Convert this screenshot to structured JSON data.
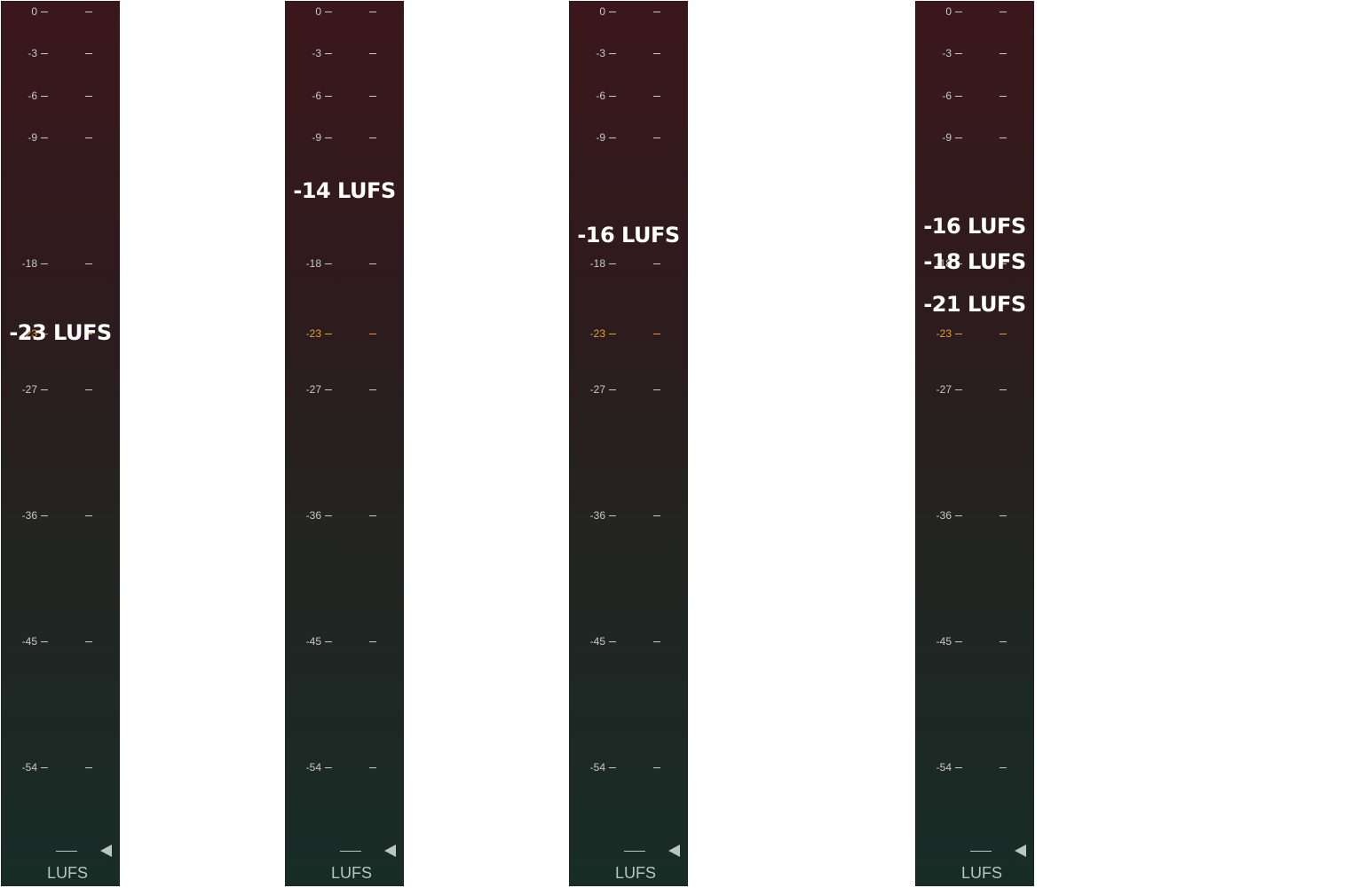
{
  "scale": {
    "ticks": [
      "0",
      "-3",
      "-6",
      "-9",
      "-18",
      "-23",
      "-27",
      "-36",
      "-45",
      "-54"
    ],
    "target": "-23",
    "colors": {
      "normal": "#c9c9c9",
      "target": "#e0a030"
    }
  },
  "unit": "LUFS",
  "meters": [
    {
      "labels": [
        {
          "text": "-23 LUFS",
          "value": -23
        }
      ]
    },
    {
      "labels": [
        {
          "text": "-14 LUFS",
          "value": -14
        }
      ]
    },
    {
      "labels": [
        {
          "text": "-16 LUFS",
          "value": -16
        }
      ]
    },
    {
      "labels": [
        {
          "text": "-16 LUFS",
          "value": -16
        },
        {
          "text": "-18 LUFS",
          "value": -18
        },
        {
          "text": "-21 LUFS",
          "value": -21
        }
      ]
    }
  ],
  "icons": {
    "marker": "play-left-icon"
  }
}
